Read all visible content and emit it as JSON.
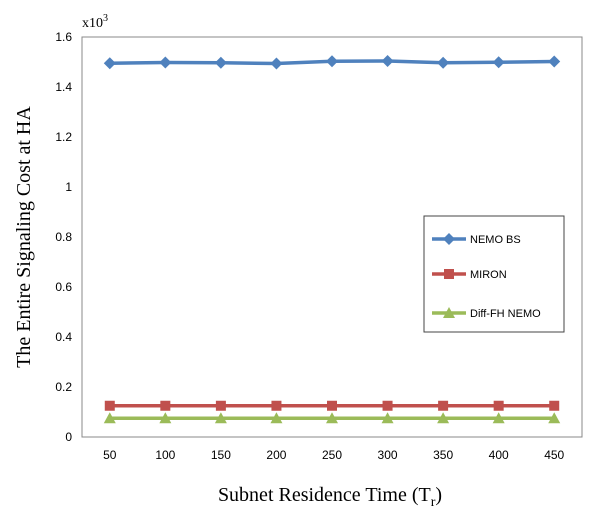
{
  "chart_data": {
    "type": "line",
    "x": [
      50,
      100,
      150,
      200,
      250,
      300,
      350,
      400,
      450
    ],
    "series": [
      {
        "name": "NEMO BS",
        "values": [
          1.495,
          1.498,
          1.497,
          1.494,
          1.503,
          1.504,
          1.497,
          1.499,
          1.502
        ],
        "color": "#4f81bd",
        "marker": "diamond"
      },
      {
        "name": "MIRON",
        "values": [
          0.125,
          0.125,
          0.125,
          0.125,
          0.125,
          0.125,
          0.125,
          0.125,
          0.125
        ],
        "color": "#c0504d",
        "marker": "square"
      },
      {
        "name": "Diff-FH NEMO",
        "values": [
          0.075,
          0.075,
          0.075,
          0.075,
          0.075,
          0.075,
          0.075,
          0.075,
          0.075
        ],
        "color": "#9bbb59",
        "marker": "triangle"
      }
    ],
    "xlabel": "Subnet Residence Time (T",
    "xlabel_sub": "r",
    "xlabel_close": ")",
    "ylabel": "The Entire Signaling Cost at HA",
    "y_multiplier_base": "x10",
    "y_multiplier_exp": "3",
    "ylim": [
      0,
      1.6
    ],
    "yticks": [
      "0",
      "0.2",
      "0.4",
      "0.6",
      "0.8",
      "1",
      "1.2",
      "1.4",
      "1.6"
    ],
    "xticks": [
      "50",
      "100",
      "150",
      "200",
      "250",
      "300",
      "350",
      "400",
      "450"
    ],
    "grid": false,
    "legend_position": "right"
  }
}
